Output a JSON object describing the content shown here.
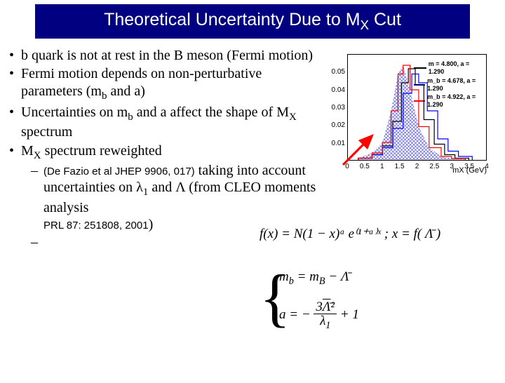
{
  "title": {
    "pre": "Theoretical Uncertainty Due to M",
    "sub": "X",
    "post": " Cut"
  },
  "bullets": {
    "b1": "b quark is not at rest in the B meson (Fermi motion)",
    "b2_pre": "Fermi motion depends on non-perturbative parameters (m",
    "b2_sub": "b",
    "b2_post": " and a)",
    "b3_pre": "Uncertainties on m",
    "b3_sub": "b",
    "b3_mid": " and a  affect the shape of M",
    "b3_sub2": "X",
    "b3_post": " spectrum",
    "b4_pre": "M",
    "b4_sub": "X",
    "b4_post": " spectrum reweighted",
    "sub1_cite": "(De Fazio et al JHEP 9906, 017)",
    "sub1_mid": " taking into account uncertainties on λ",
    "sub1_sub": "1",
    "sub1_post": " and Λ (from CLEO moments analysis",
    "sub1_ref": "PRL 87: 251808, 2001",
    "sub1_close": ")"
  },
  "chart": {
    "type": "histogram",
    "xlabel": "mX (GeV)",
    "xlim": [
      0,
      4
    ],
    "ylim": [
      0,
      0.06
    ],
    "xtick_positions": [
      0,
      0.5,
      1.0,
      1.5,
      2.0,
      2.5,
      3.0,
      3.5,
      4.0
    ],
    "xtick_labels": [
      "0",
      "0.5",
      "1",
      "1.5",
      "2",
      "2.5",
      "3",
      "3.5",
      "4"
    ],
    "ytick_positions": [
      0.01,
      0.02,
      0.03,
      0.04,
      0.05
    ],
    "ytick_labels": [
      "0.01",
      "0.02",
      "0.03",
      "0.04",
      "0.05"
    ],
    "legend": [
      {
        "label": "m = 4.800, a = 1.290",
        "color": "#000000"
      },
      {
        "label": "m_b = 4.678, a = 1.290",
        "color": "#0000ff"
      },
      {
        "label": "m_b = 4.922, a = 1.290",
        "color": "#ff0000"
      }
    ],
    "curve_black": {
      "x": [
        0.3,
        0.7,
        1.0,
        1.3,
        1.55,
        1.75,
        1.95,
        2.2,
        2.5,
        2.8,
        3.1,
        3.5
      ],
      "y": [
        0.001,
        0.003,
        0.008,
        0.022,
        0.044,
        0.052,
        0.043,
        0.023,
        0.009,
        0.003,
        0.001,
        0.0005
      ]
    },
    "curve_blue": {
      "x": [
        0.3,
        0.7,
        1.0,
        1.3,
        1.6,
        1.85,
        2.05,
        2.3,
        2.6,
        2.9,
        3.2,
        3.6
      ],
      "y": [
        0.001,
        0.003,
        0.007,
        0.018,
        0.038,
        0.049,
        0.044,
        0.028,
        0.012,
        0.005,
        0.002,
        0.0006
      ]
    },
    "curve_red": {
      "x": [
        0.3,
        0.7,
        1.0,
        1.25,
        1.45,
        1.6,
        1.8,
        2.05,
        2.35,
        2.7,
        3.0,
        3.4
      ],
      "y": [
        0.001,
        0.004,
        0.01,
        0.028,
        0.049,
        0.054,
        0.04,
        0.019,
        0.007,
        0.002,
        0.0008,
        0.0004
      ]
    },
    "hatch_color": "#3030cc",
    "background_color": "#ffffff",
    "arrow_color": "#ff0000"
  },
  "equations": {
    "eq1": "f(x) = N(1 − x)ᵃ e⁽¹⁺ᵃ⁾ˣ ; x = f( Λ̄ )",
    "eq2a_lhs": "m",
    "eq2a_sub": "b",
    "eq2a_mid": " = m",
    "eq2a_sub2": "B",
    "eq2a_rhs": " − Λ̄",
    "eq3_lhs": "a = −",
    "eq3_num_pre": "3",
    "eq3_num_bar": "Λ̄",
    "eq3_num_post": "²",
    "eq3_den_pre": "λ",
    "eq3_den_sub": "1",
    "eq3_rhs": " + 1"
  }
}
